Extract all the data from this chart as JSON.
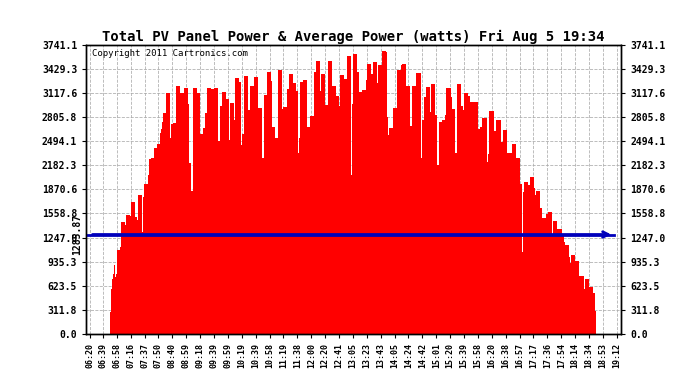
{
  "title": "Total PV Panel Power & Average Power (watts) Fri Aug 5 19:34",
  "copyright": "Copyright 2011 Cartronics.com",
  "avg_power": 1285.87,
  "yticks": [
    0.0,
    311.8,
    623.5,
    935.3,
    1247.0,
    1558.8,
    1870.6,
    2182.3,
    2494.1,
    2805.8,
    3117.6,
    3429.3,
    3741.1
  ],
  "ymax": 3741.1,
  "ymin": 0.0,
  "bar_color": "#ff0000",
  "avg_line_color": "#0000bb",
  "background_color": "#ffffff",
  "grid_color": "#aaaaaa",
  "xtick_labels": [
    "06:20",
    "06:39",
    "06:58",
    "07:16",
    "07:37",
    "07:50",
    "08:40",
    "08:59",
    "09:18",
    "09:39",
    "09:59",
    "10:19",
    "10:39",
    "10:58",
    "11:19",
    "11:38",
    "12:00",
    "12:20",
    "12:41",
    "13:05",
    "13:23",
    "13:43",
    "14:05",
    "14:24",
    "14:42",
    "15:01",
    "15:20",
    "15:39",
    "15:58",
    "16:20",
    "16:38",
    "16:57",
    "17:17",
    "17:36",
    "17:54",
    "18:14",
    "18:34",
    "18:53",
    "19:12"
  ],
  "figwidth": 6.9,
  "figheight": 3.75,
  "dpi": 100
}
